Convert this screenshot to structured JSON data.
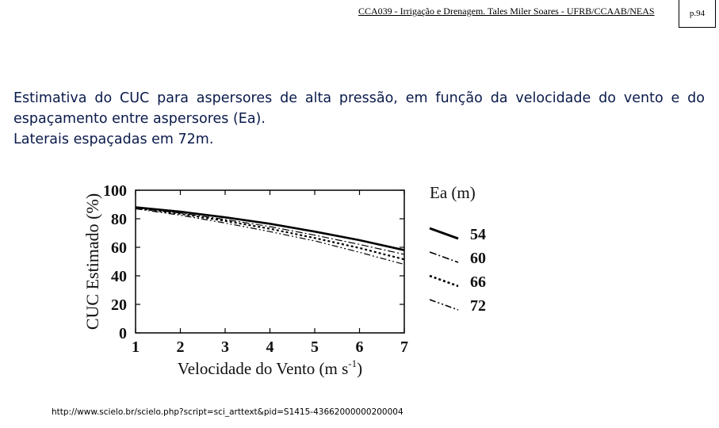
{
  "header": {
    "course_title": "CCA039 - Irrigação e Drenagem. Tales Miler Soares - UFRB/CCAAB/NEAS",
    "page_number": "p.94"
  },
  "body": {
    "paragraph1": "Estimativa do CUC para aspersores de alta pressão, em função da velocidade do vento e do espaçamento entre aspersores (Ea).",
    "paragraph2": "Laterais espaçadas em 72m."
  },
  "source_url": "http://www.scielo.br/scielo.php?script=sci_arttext&pid=S1415-43662000000200004",
  "chart_data": {
    "type": "line",
    "title": "",
    "xlabel": "Velocidade do Vento (m s",
    "xlabel_superscript": "-1",
    "xlabel_close": ")",
    "ylabel": "CUC Estimado (%)",
    "xlim": [
      1,
      7
    ],
    "ylim": [
      0,
      100
    ],
    "x_ticks": [
      "1",
      "2",
      "3",
      "4",
      "5",
      "6",
      "7"
    ],
    "y_ticks": [
      "0",
      "20",
      "40",
      "60",
      "80",
      "100"
    ],
    "legend_title": "Ea (m)",
    "legend_position": "right",
    "grid": false,
    "x": [
      1,
      2,
      3,
      4,
      5,
      6,
      7
    ],
    "series": [
      {
        "name": "54",
        "style": "solid",
        "values": [
          88,
          85,
          81,
          76.5,
          71,
          65,
          58
        ]
      },
      {
        "name": "60",
        "style": "dashdot",
        "values": [
          87.5,
          84,
          79.5,
          74.5,
          68.5,
          62,
          55
        ]
      },
      {
        "name": "66",
        "style": "dotted",
        "values": [
          87.5,
          83.5,
          78.5,
          73,
          66.5,
          59.5,
          51.5
        ]
      },
      {
        "name": "72",
        "style": "dashdotdot",
        "values": [
          87,
          82.5,
          77,
          71,
          64.5,
          56.5,
          48
        ]
      }
    ]
  }
}
